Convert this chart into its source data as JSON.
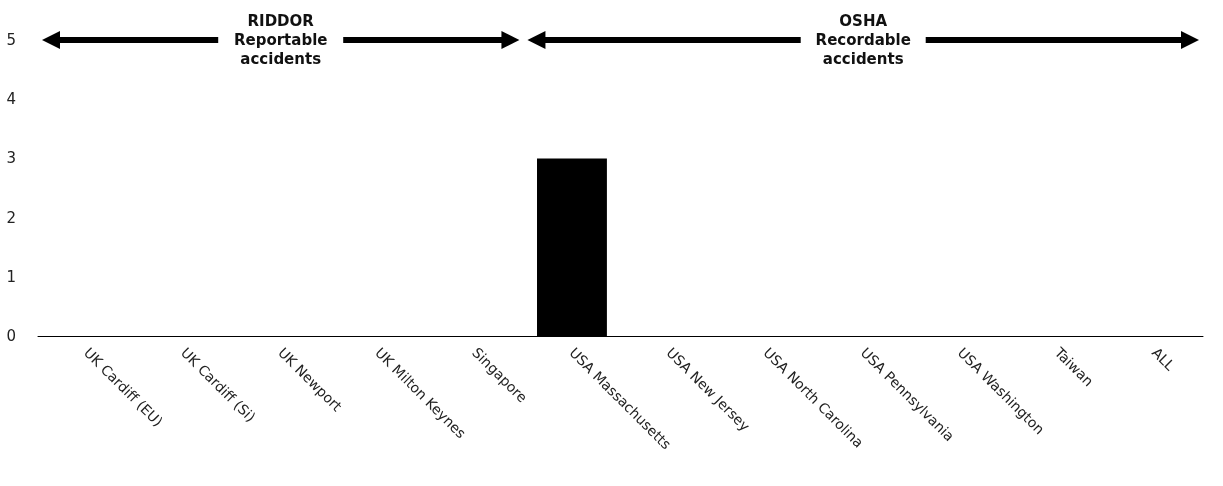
{
  "chart_data": {
    "type": "bar",
    "categories": [
      "UK Cardiff (EU)",
      "UK Cardiff (Si)",
      "UK Newport",
      "UK Milton Keynes",
      "Singapore",
      "USA Massachusetts",
      "USA New Jersey",
      "USA North Carolina",
      "USA Pennsylvania",
      "USA Washington",
      "Taiwan",
      "ALL"
    ],
    "values": [
      0,
      0,
      0,
      0,
      0,
      3,
      0,
      0,
      0,
      0,
      0,
      0
    ],
    "color": "#000000",
    "ylim": [
      0,
      5
    ],
    "yticks": [
      0,
      1,
      2,
      3,
      4,
      5
    ],
    "grid": false,
    "annotations": [
      "RIDDOR Reportable accidents",
      "OSHA Recordable accidents"
    ]
  }
}
